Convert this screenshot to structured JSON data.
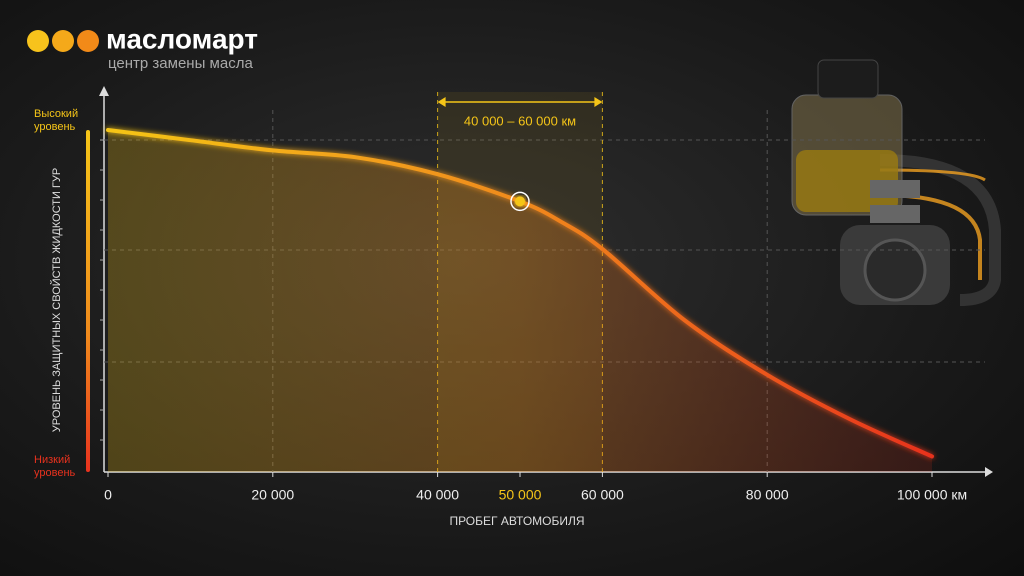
{
  "brand": {
    "name": "масломарт",
    "tagline": "центр замены масла"
  },
  "chart_data": {
    "type": "line",
    "y_label": "УРОВЕНЬ ЗАЩИТНЫХ СВОЙСТВ ЖИДКОСТИ ГУР",
    "x_label": "ПРОБЕГ АВТОМОБИЛЯ",
    "y_top_label": "Высокий уровень",
    "y_bottom_label": "Низкий уровень",
    "x": [
      0,
      10000,
      20000,
      30000,
      40000,
      50000,
      55000,
      60000,
      70000,
      80000,
      90000,
      100000
    ],
    "values": [
      100,
      97,
      94,
      92,
      87,
      79,
      73,
      65,
      44,
      28,
      15,
      4
    ],
    "colors": [
      "#f5c518",
      "#f08a1c",
      "#e8321e"
    ],
    "xlim": [
      0,
      100000
    ],
    "ylim": [
      0,
      100
    ],
    "xticks": [
      {
        "value": 0,
        "label": "0"
      },
      {
        "value": 20000,
        "label": "20 000"
      },
      {
        "value": 40000,
        "label": "40 000"
      },
      {
        "value": 50000,
        "label": "50 000"
      },
      {
        "value": 60000,
        "label": "60 000"
      },
      {
        "value": 80000,
        "label": "80 000"
      },
      {
        "value": 100000,
        "label": "100 000 км"
      }
    ],
    "highlight_x": 50000,
    "highlight_range": [
      40000,
      60000
    ],
    "range_label": "40 000 – 60 000 км",
    "grid": true
  }
}
